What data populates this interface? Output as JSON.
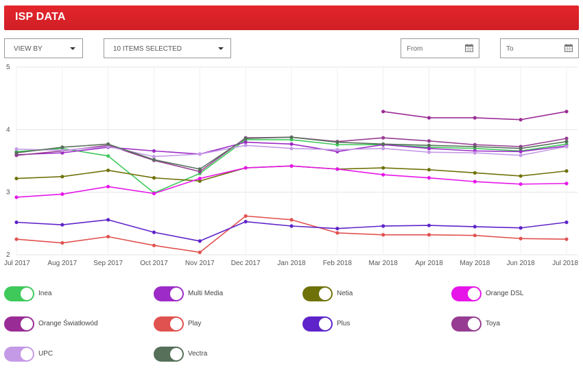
{
  "header": {
    "title": "ISP DATA"
  },
  "controls": {
    "view_by": "VIEW BY",
    "items_selected": "10 ITEMS SELECTED",
    "from_placeholder": "From",
    "to_placeholder": "To"
  },
  "chart_data": {
    "type": "line",
    "title": "",
    "xlabel": "",
    "ylabel": "",
    "categories": [
      "Jul 2017",
      "Aug 2017",
      "Sep 2017",
      "Oct 2017",
      "Nov 2017",
      "Dec 2017",
      "Jan 2018",
      "Feb 2018",
      "Mar 2018",
      "Apr 2018",
      "May 2018",
      "Jun 2018",
      "Jul 2018"
    ],
    "ylim": [
      2,
      5
    ],
    "yticks": [
      2,
      3,
      4,
      5
    ],
    "grid": true,
    "legend_position": "bottom",
    "series": [
      {
        "name": "Inea",
        "color": "#3fc95a",
        "values": [
          3.65,
          3.7,
          3.58,
          2.99,
          3.3,
          3.84,
          3.84,
          3.76,
          3.76,
          3.72,
          3.7,
          3.66,
          3.77
        ]
      },
      {
        "name": "Multi Media",
        "color": "#9c2bc7",
        "values": [
          3.6,
          3.63,
          3.72,
          3.66,
          3.61,
          3.8,
          3.77,
          3.65,
          3.76,
          3.7,
          3.66,
          3.65,
          3.74
        ]
      },
      {
        "name": "Netia",
        "color": "#6f7209",
        "values": [
          3.22,
          3.25,
          3.35,
          3.23,
          3.18,
          3.39,
          3.42,
          3.37,
          3.39,
          3.36,
          3.31,
          3.26,
          3.34
        ]
      },
      {
        "name": "Orange DSL",
        "color": "#e616e8",
        "values": [
          2.92,
          2.97,
          3.09,
          2.98,
          3.22,
          3.39,
          3.42,
          3.37,
          3.28,
          3.23,
          3.17,
          3.13,
          3.14
        ]
      },
      {
        "name": "Orange Światłowód",
        "color": "#9a2c95",
        "values": [
          null,
          null,
          null,
          null,
          null,
          null,
          null,
          null,
          4.29,
          4.19,
          4.19,
          4.16,
          4.29
        ]
      },
      {
        "name": "Play",
        "color": "#e0524f",
        "values": [
          2.25,
          2.19,
          2.29,
          2.15,
          2.04,
          2.62,
          2.56,
          2.35,
          2.32,
          2.32,
          2.31,
          2.26,
          2.25
        ]
      },
      {
        "name": "Plus",
        "color": "#5e23c9",
        "values": [
          2.52,
          2.48,
          2.56,
          2.36,
          2.22,
          2.53,
          2.46,
          2.42,
          2.46,
          2.47,
          2.45,
          2.43,
          2.52
        ]
      },
      {
        "name": "Toya",
        "color": "#963c92",
        "values": [
          3.59,
          3.66,
          3.75,
          3.51,
          3.33,
          3.87,
          3.88,
          3.81,
          3.87,
          3.82,
          3.76,
          3.73,
          3.86
        ]
      },
      {
        "name": "UPC",
        "color": "#c49ae6",
        "values": [
          3.69,
          3.67,
          3.73,
          3.57,
          3.61,
          3.75,
          3.7,
          3.68,
          3.7,
          3.64,
          3.63,
          3.59,
          3.73
        ]
      },
      {
        "name": "Vectra",
        "color": "#56705a",
        "values": [
          3.63,
          3.72,
          3.77,
          3.52,
          3.37,
          3.86,
          3.88,
          3.8,
          3.77,
          3.75,
          3.73,
          3.7,
          3.81
        ]
      }
    ]
  },
  "legend": {
    "items": [
      {
        "label": "Inea",
        "color": "#3fc95a"
      },
      {
        "label": "Multi Media",
        "color": "#9c2bc7"
      },
      {
        "label": "Netia",
        "color": "#6f7209"
      },
      {
        "label": "Orange DSL",
        "color": "#e616e8"
      },
      {
        "label": "Orange Światłowód",
        "color": "#9a2c95"
      },
      {
        "label": "Play",
        "color": "#e0524f"
      },
      {
        "label": "Plus",
        "color": "#5e23c9"
      },
      {
        "label": "Toya",
        "color": "#963c92"
      },
      {
        "label": "UPC",
        "color": "#c49ae6"
      },
      {
        "label": "Vectra",
        "color": "#56705a"
      }
    ]
  }
}
